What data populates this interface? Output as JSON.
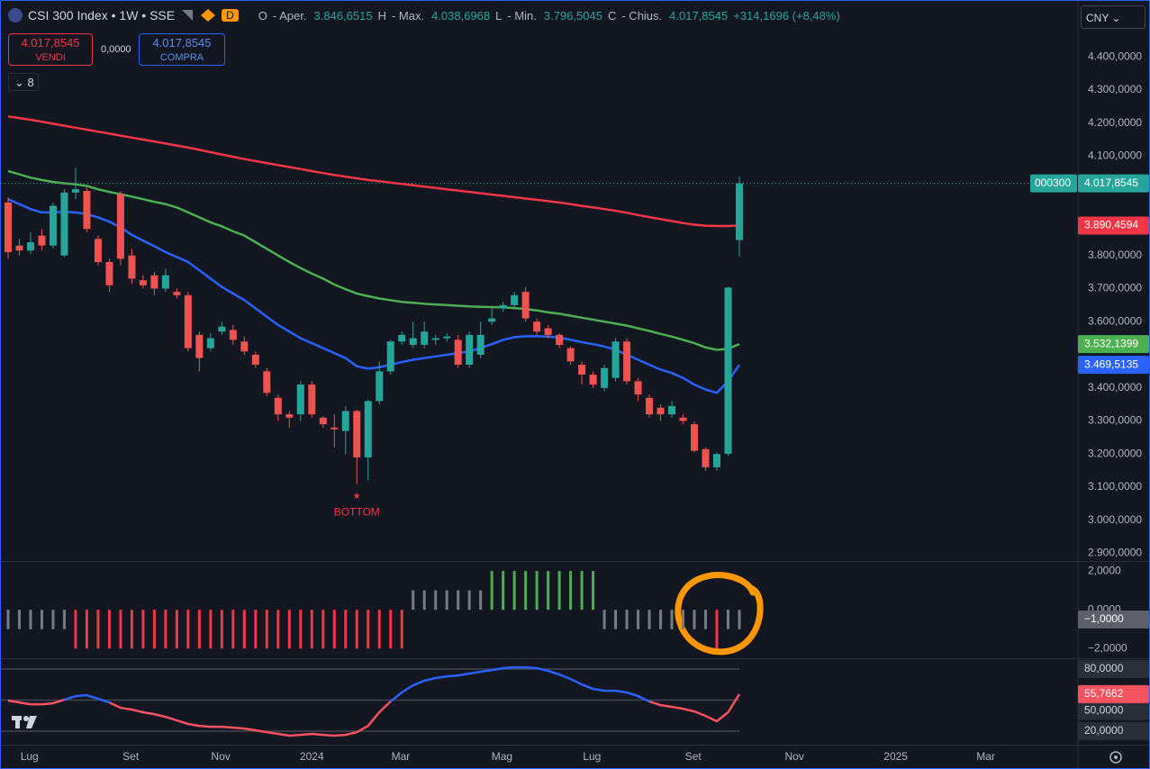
{
  "header": {
    "symbol": "CSI 300 Index • 1W • SSE",
    "badge": "D",
    "ohlc": [
      {
        "key": "O",
        "name": "- Aper.",
        "value": "3.846,6515"
      },
      {
        "key": "H",
        "name": "- Max.",
        "value": "4.038,6968"
      },
      {
        "key": "L",
        "name": "- Min.",
        "value": "3.796,5045"
      },
      {
        "key": "C",
        "name": "- Chius.",
        "value": "4.017,8545"
      }
    ],
    "change": "+314,1696 (+8,48%)"
  },
  "trade": {
    "sell_price": "4.017,8545",
    "sell_label": "VENDI",
    "spread": "0,0000",
    "buy_price": "4.017,8545",
    "buy_label": "COMPRA"
  },
  "indicators_count": "8",
  "currency": "CNY",
  "chart_data": [
    {
      "type": "candlestick",
      "x": [
        0,
        1,
        2,
        3,
        4,
        5,
        6,
        7,
        8,
        9,
        10,
        11,
        12,
        13,
        14,
        15,
        16,
        17,
        18,
        19,
        20,
        21,
        22,
        23,
        24,
        25,
        26,
        27,
        28,
        29,
        30,
        31,
        32,
        33,
        34,
        35,
        36,
        37,
        38,
        39,
        40,
        41,
        42,
        43,
        44,
        45,
        46,
        47,
        48,
        49,
        50,
        51,
        52,
        53,
        54,
        55,
        56,
        57,
        58,
        59,
        60,
        61,
        62,
        63,
        64,
        65
      ],
      "open": [
        3960,
        3830,
        3815,
        3860,
        3830,
        3800,
        3990,
        3995,
        3850,
        3780,
        3985,
        3800,
        3725,
        3740,
        3700,
        3690,
        3680,
        3560,
        3520,
        3570,
        3575,
        3540,
        3500,
        3450,
        3370,
        3320,
        3320,
        3410,
        3310,
        3280,
        3270,
        3330,
        3190,
        3360,
        3450,
        3540,
        3530,
        3530,
        3545,
        3550,
        3545,
        3470,
        3500,
        3600,
        3640,
        3650,
        3690,
        3600,
        3580,
        3560,
        3520,
        3470,
        3440,
        3400,
        3430,
        3540,
        3420,
        3370,
        3340,
        3320,
        3310,
        3290,
        3215,
        3160,
        3201,
        3846.6515
      ],
      "high": [
        3975,
        3850,
        3870,
        3880,
        3960,
        4000,
        4065,
        4005,
        3860,
        3790,
        3995,
        3820,
        3740,
        3750,
        3760,
        3700,
        3690,
        3570,
        3565,
        3600,
        3590,
        3555,
        3510,
        3460,
        3380,
        3330,
        3420,
        3420,
        3315,
        3320,
        3345,
        3335,
        3365,
        3480,
        3545,
        3570,
        3600,
        3600,
        3560,
        3565,
        3560,
        3570,
        3600,
        3640,
        3660,
        3690,
        3705,
        3610,
        3590,
        3565,
        3525,
        3480,
        3450,
        3470,
        3550,
        3550,
        3430,
        3380,
        3350,
        3360,
        3320,
        3300,
        3220,
        3205,
        3705,
        4038.6968
      ],
      "low": [
        3790,
        3800,
        3805,
        3815,
        3820,
        3795,
        3970,
        3870,
        3770,
        3690,
        3770,
        3715,
        3700,
        3680,
        3690,
        3670,
        3510,
        3450,
        3510,
        3560,
        3530,
        3500,
        3460,
        3375,
        3300,
        3280,
        3300,
        3310,
        3280,
        3220,
        3200,
        3110,
        3120,
        3350,
        3440,
        3530,
        3520,
        3520,
        3530,
        3540,
        3460,
        3460,
        3490,
        3590,
        3630,
        3640,
        3600,
        3560,
        3550,
        3520,
        3470,
        3410,
        3400,
        3390,
        3420,
        3410,
        3360,
        3310,
        3300,
        3310,
        3290,
        3205,
        3150,
        3150,
        3195,
        3796.5045
      ],
      "close": [
        3810,
        3815,
        3840,
        3830,
        3950,
        3990,
        4000,
        3880,
        3780,
        3710,
        3790,
        3730,
        3710,
        3700,
        3740,
        3680,
        3520,
        3490,
        3550,
        3585,
        3545,
        3510,
        3470,
        3385,
        3320,
        3310,
        3410,
        3320,
        3290,
        3275,
        3330,
        3190,
        3360,
        3450,
        3540,
        3560,
        3550,
        3570,
        3550,
        3555,
        3470,
        3560,
        3560,
        3610,
        3650,
        3680,
        3610,
        3570,
        3560,
        3530,
        3480,
        3440,
        3410,
        3460,
        3540,
        3420,
        3380,
        3320,
        3320,
        3345,
        3300,
        3210,
        3160,
        3200,
        3703,
        4017.8545
      ],
      "up_color": "#26a69a",
      "down_color": "#ef5350",
      "last_price": {
        "symbol_label": "000300",
        "label": "4.017,8545"
      },
      "lines": [
        {
          "color": "#f23645",
          "price_label": "3.890,4594",
          "values": [
            4220,
            4215,
            4210,
            4204,
            4198,
            4192,
            4186,
            4180,
            4174,
            4168,
            4162,
            4156,
            4150,
            4144,
            4138,
            4132,
            4126,
            4119,
            4112,
            4105,
            4098,
            4091,
            4085,
            4079,
            4073,
            4067,
            4061,
            4055,
            4049,
            4043,
            4038,
            4033,
            4028,
            4024,
            4020,
            4016,
            4012,
            4008,
            4004,
            4000,
            3996,
            3992,
            3988,
            3984,
            3980,
            3976,
            3972,
            3968,
            3964,
            3960,
            3955,
            3950,
            3945,
            3940,
            3935,
            3929,
            3922,
            3916,
            3910,
            3904,
            3898,
            3893,
            3890,
            3889,
            3889,
            3890.4594
          ]
        },
        {
          "color": "#4caf50",
          "price_label": "3.532,1399",
          "values": [
            4055,
            4045,
            4035,
            4028,
            4022,
            4018,
            4015,
            4010,
            4000,
            3992,
            3985,
            3978,
            3970,
            3962,
            3955,
            3945,
            3930,
            3915,
            3900,
            3888,
            3873,
            3860,
            3840,
            3820,
            3800,
            3780,
            3762,
            3745,
            3730,
            3712,
            3698,
            3685,
            3677,
            3670,
            3665,
            3660,
            3657,
            3654,
            3652,
            3650,
            3648,
            3646,
            3645,
            3644,
            3643,
            3641,
            3638,
            3634,
            3628,
            3624,
            3618,
            3612,
            3606,
            3600,
            3594,
            3588,
            3580,
            3572,
            3563,
            3555,
            3545,
            3535,
            3522,
            3515,
            3518,
            3532.1399
          ]
        },
        {
          "color": "#2962ff",
          "price_label": "3.469,5135",
          "values": [
            3970,
            3955,
            3940,
            3930,
            3930,
            3932,
            3930,
            3925,
            3915,
            3902,
            3885,
            3862,
            3845,
            3828,
            3810,
            3795,
            3780,
            3755,
            3730,
            3705,
            3685,
            3665,
            3640,
            3615,
            3590,
            3570,
            3550,
            3535,
            3520,
            3505,
            3490,
            3465,
            3458,
            3462,
            3470,
            3478,
            3485,
            3490,
            3495,
            3500,
            3505,
            3510,
            3520,
            3532,
            3545,
            3553,
            3556,
            3556,
            3555,
            3552,
            3545,
            3538,
            3532,
            3525,
            3515,
            3500,
            3485,
            3470,
            3455,
            3445,
            3430,
            3410,
            3395,
            3385,
            3420,
            3469.5135
          ]
        }
      ],
      "annotation": {
        "x": 31,
        "marker": "★",
        "text": "BOTTOM"
      },
      "xlim": [
        -0.64,
        95.1
      ],
      "xticks": [
        {
          "value": 1.9,
          "label": "Lug"
        },
        {
          "value": 10.9,
          "label": "Set"
        },
        {
          "value": 18.9,
          "label": "Nov"
        },
        {
          "value": 27,
          "label": "2024"
        },
        {
          "value": 34.9,
          "label": "Mar"
        },
        {
          "value": 43.9,
          "label": "Mag"
        },
        {
          "value": 51.9,
          "label": "Lug"
        },
        {
          "value": 60.9,
          "label": "Set"
        },
        {
          "value": 69.9,
          "label": "Nov"
        },
        {
          "value": 78.9,
          "label": "2025"
        },
        {
          "value": 86.9,
          "label": "Mar"
        }
      ],
      "ylim": [
        2877,
        4569
      ],
      "yticks": [
        {
          "value": 4400,
          "label": "4.400,0000"
        },
        {
          "value": 4300,
          "label": "4.300,0000"
        },
        {
          "value": 4200,
          "label": "4.200,0000"
        },
        {
          "value": 4100,
          "label": "4.100,0000"
        },
        {
          "value": 3800,
          "label": "3.800,0000"
        },
        {
          "value": 3700,
          "label": "3.700,0000"
        },
        {
          "value": 3600,
          "label": "3.600,0000"
        },
        {
          "value": 3400,
          "label": "3.400,0000"
        },
        {
          "value": 3300,
          "label": "3.300,0000"
        },
        {
          "value": 3200,
          "label": "3.200,0000"
        },
        {
          "value": 3100,
          "label": "3.100,0000"
        },
        {
          "value": 3000,
          "label": "3.000,0000"
        },
        {
          "value": 2900,
          "label": "2.900,0000"
        }
      ]
    },
    {
      "type": "bar",
      "x": [
        0,
        1,
        2,
        3,
        4,
        5,
        6,
        7,
        8,
        9,
        10,
        11,
        12,
        13,
        14,
        15,
        16,
        17,
        18,
        19,
        20,
        21,
        22,
        23,
        24,
        25,
        26,
        27,
        28,
        29,
        30,
        31,
        32,
        33,
        34,
        35,
        36,
        37,
        38,
        39,
        40,
        41,
        42,
        43,
        44,
        45,
        46,
        47,
        48,
        49,
        50,
        51,
        52,
        53,
        54,
        55,
        56,
        57,
        58,
        59,
        60,
        61,
        62,
        63,
        64,
        65
      ],
      "values": [
        -1,
        -1,
        -1,
        -1,
        -1,
        -1,
        -2,
        -2,
        -2,
        -2,
        -2,
        -2,
        -2,
        -2,
        -2,
        -2,
        -2,
        -2,
        -2,
        -2,
        -2,
        -2,
        -2,
        -2,
        -2,
        -2,
        -2,
        -2,
        -2,
        -2,
        -2,
        -2,
        -2,
        -2,
        -2,
        -2,
        1,
        1,
        1,
        1,
        1,
        1,
        1,
        2,
        2,
        2,
        2,
        2,
        2,
        2,
        2,
        2,
        2,
        -1,
        -1,
        -1,
        -1,
        -1,
        -1,
        -1,
        -1,
        -1,
        -1,
        -2,
        -1,
        -1
      ],
      "colors": [
        {
          "value": 2,
          "color": "#4caf50"
        },
        {
          "value": 1,
          "color": "#787b86"
        },
        {
          "value": -1,
          "color": "#787b86"
        },
        {
          "value": -2,
          "color": "#f23645"
        }
      ],
      "last_label": "−1,0000",
      "ylim": [
        -2.5,
        2.47
      ],
      "yticks": [
        {
          "value": 2,
          "label": "2,0000"
        },
        {
          "value": 0,
          "label": "0,0000"
        },
        {
          "value": -2,
          "label": "−2,0000"
        }
      ]
    },
    {
      "type": "line",
      "x": [
        0,
        1,
        2,
        3,
        4,
        5,
        6,
        7,
        8,
        9,
        10,
        11,
        12,
        13,
        14,
        15,
        16,
        17,
        18,
        19,
        20,
        21,
        22,
        23,
        24,
        25,
        26,
        27,
        28,
        29,
        30,
        31,
        32,
        33,
        34,
        35,
        36,
        37,
        38,
        39,
        40,
        41,
        42,
        43,
        44,
        45,
        46,
        47,
        48,
        49,
        50,
        51,
        52,
        53,
        54,
        55,
        56,
        57,
        58,
        59,
        60,
        61,
        62,
        63,
        64,
        65
      ],
      "series": [
        {
          "color": "#f7525f",
          "values": [
            49.6,
            47.8,
            46,
            46,
            47,
            50.4,
            null,
            null,
            null,
            47.8,
            42.6,
            40.9,
            38.3,
            36.5,
            33.9,
            30.4,
            27,
            25.2,
            24.3,
            24.3,
            23.5,
            22.6,
            20.9,
            19.1,
            17.4,
            15.7,
            16.5,
            17.4,
            16.5,
            15.7,
            16.5,
            19.1,
            25.2,
            38.3,
            48.7,
            null,
            null,
            null,
            null,
            null,
            null,
            null,
            null,
            null,
            null,
            null,
            null,
            null,
            null,
            null,
            null,
            null,
            null,
            null,
            null,
            null,
            null,
            48.7,
            45.2,
            43.5,
            41.7,
            39.1,
            34.8,
            29.6,
            38.3,
            55.7662
          ],
          "last_label": "55,7662"
        },
        {
          "color": "#2962ff",
          "values": [
            null,
            null,
            null,
            null,
            null,
            50.4,
            53.9,
            54.8,
            51.3,
            47.8,
            null,
            null,
            null,
            null,
            null,
            null,
            null,
            null,
            null,
            null,
            null,
            null,
            null,
            null,
            null,
            null,
            null,
            null,
            null,
            null,
            null,
            null,
            null,
            null,
            48.7,
            57.4,
            64.3,
            68.7,
            71.3,
            73,
            73.9,
            75.7,
            77.4,
            79.1,
            80.9,
            81.7,
            81.7,
            80.9,
            78.3,
            74.8,
            70.4,
            65.2,
            60.9,
            59.1,
            59.1,
            57.4,
            53.9,
            48.7,
            null,
            null,
            null,
            null,
            null,
            null,
            null,
            null
          ]
        }
      ],
      "grid": true,
      "ylim": [
        7,
        89.6
      ],
      "yticks": [
        {
          "value": 80,
          "label": "80,0000"
        },
        {
          "value": 50,
          "label": "50,0000"
        },
        {
          "value": 20,
          "label": "20,0000"
        }
      ]
    }
  ]
}
